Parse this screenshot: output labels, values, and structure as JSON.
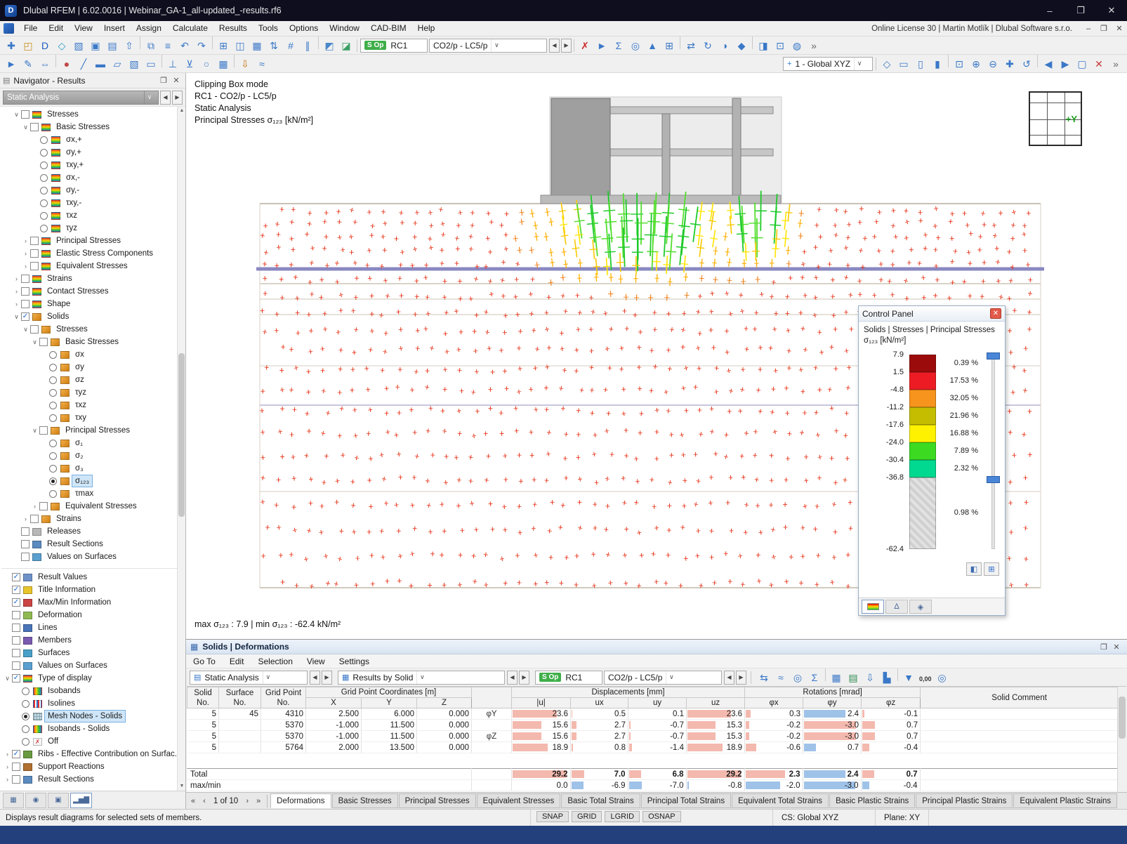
{
  "colors": {
    "bar_pink": "#f4b9ae",
    "bar_blue": "#9fc2e8",
    "accent_green": "#3fae49"
  },
  "title_bar": {
    "title": "Dlubal RFEM | 6.02.0016 | Webinar_GA-1_all-updated_-results.rf6",
    "minimize": "–",
    "maximize": "❐",
    "close": "✕"
  },
  "menu_bar": {
    "items": [
      "File",
      "Edit",
      "View",
      "Insert",
      "Assign",
      "Calculate",
      "Results",
      "Tools",
      "Options",
      "Window",
      "CAD-BIM",
      "Help"
    ],
    "license_text": "Online License 30 | Martin Motlík | Dlubal Software s.r.o."
  },
  "toolbars": {
    "sop_label": "S Op",
    "result_class_combo": "RC1",
    "load_case_combo": "CO2/p - LC5/p",
    "axis_system_combo": "1 - Global XYZ",
    "row1_left": [
      {
        "n": "new-model-icon",
        "g": "✚",
        "c": "#3a78c8"
      },
      {
        "n": "open-model-icon",
        "g": "◰",
        "c": "#c8901c"
      },
      {
        "n": "dlubal-hub-icon",
        "g": "D",
        "c": "#1d5bbf"
      },
      {
        "n": "bim-link-icon",
        "g": "◇",
        "c": "#2a9ac8"
      },
      {
        "n": "paste-icon",
        "g": "▧",
        "c": "#3a78c8"
      },
      {
        "n": "save-icon",
        "g": "▣",
        "c": "#3a78c8"
      },
      {
        "n": "print-icon",
        "g": "▤",
        "c": "#3a78c8"
      },
      {
        "n": "export-icon",
        "g": "⇧",
        "c": "#3a78c8"
      },
      {
        "sep": true
      },
      {
        "n": "copy-icon",
        "g": "⧉",
        "c": "#3a78c8"
      },
      {
        "n": "printout-report-icon",
        "g": "≡",
        "c": "#3a78c8"
      },
      {
        "n": "undo-icon",
        "g": "↶",
        "c": "#3a78c8"
      },
      {
        "n": "redo-icon",
        "g": "↷",
        "c": "#3a78c8"
      },
      {
        "sep": true
      },
      {
        "n": "data-table-icon",
        "g": "⊞",
        "c": "#3a78c8"
      },
      {
        "n": "split-view-icon",
        "g": "◫",
        "c": "#3a78c8"
      },
      {
        "n": "results-table-icon",
        "g": "▦",
        "c": "#3a78c8"
      },
      {
        "n": "renumber-icon",
        "g": "⇅",
        "c": "#3a78c8"
      },
      {
        "n": "grid-snap-icon",
        "g": "#",
        "c": "#3a78c8"
      },
      {
        "n": "guidelines-icon",
        "g": "∥",
        "c": "#3a78c8"
      },
      {
        "sep": true
      },
      {
        "n": "surface-results-icon",
        "g": "◩",
        "c": "#4a88c8"
      },
      {
        "n": "solid-results-icon",
        "g": "◪",
        "c": "#3aa064"
      }
    ],
    "row1_right": [
      {
        "n": "stop-calculation-icon",
        "g": "✗",
        "c": "#cc2a2a"
      },
      {
        "n": "selection-pointer-icon",
        "g": "►",
        "c": "#3a78c8"
      },
      {
        "n": "result-values-icon",
        "g": "Σ",
        "c": "#3a78c8"
      },
      {
        "n": "find-value-icon",
        "g": "◎",
        "c": "#3a78c8"
      },
      {
        "n": "extreme-values-icon",
        "g": "▲",
        "c": "#3a78c8"
      },
      {
        "n": "add-table-icon",
        "g": "⊞",
        "c": "#3a78c8"
      },
      {
        "sep": true
      },
      {
        "n": "move-entities-icon",
        "g": "⇄",
        "c": "#3a78c8"
      },
      {
        "n": "rotate-entities-icon",
        "g": "↻",
        "c": "#3a78c8"
      },
      {
        "n": "mirror-entities-icon",
        "g": "◑",
        "c": "#3a78c8"
      },
      {
        "n": "scale-entities-icon",
        "g": "◆",
        "c": "#3a78c8"
      },
      {
        "sep": true
      },
      {
        "n": "display-settings-icon",
        "g": "◨",
        "c": "#3a78c8"
      },
      {
        "n": "clipping-box-icon",
        "g": "⊡",
        "c": "#3a78c8"
      },
      {
        "n": "render-mode-icon",
        "g": "◍",
        "c": "#3a78c8"
      },
      {
        "n": "more-commands-icon",
        "g": "»",
        "c": "#666666"
      }
    ],
    "row2_left": [
      {
        "n": "select-mode-icon",
        "g": "►",
        "c": "#3a78c8"
      },
      {
        "n": "edit-mode-icon",
        "g": "✎",
        "c": "#3a78c8"
      },
      {
        "n": "dimensions-icon",
        "g": "⇔",
        "c": "#3a78c8"
      },
      {
        "sep": true
      },
      {
        "n": "node-tool-icon",
        "g": "●",
        "c": "#c04848"
      },
      {
        "n": "line-tool-icon",
        "g": "╱",
        "c": "#3a78c8"
      },
      {
        "n": "member-tool-icon",
        "g": "▬",
        "c": "#3a78c8"
      },
      {
        "n": "surface-tool-icon",
        "g": "▱",
        "c": "#3a78c8"
      },
      {
        "n": "solid-tool-icon",
        "g": "▧",
        "c": "#3a78c8"
      },
      {
        "n": "opening-tool-icon",
        "g": "▭",
        "c": "#3a78c8"
      },
      {
        "sep": true
      },
      {
        "n": "nodal-support-icon",
        "g": "⊥",
        "c": "#3a78c8"
      },
      {
        "n": "line-support-icon",
        "g": "⊻",
        "c": "#3a78c8"
      },
      {
        "n": "member-hinge-icon",
        "g": "○",
        "c": "#3a78c8"
      },
      {
        "n": "mesh-refinement-icon",
        "g": "▦",
        "c": "#3a78c8"
      },
      {
        "sep": true
      },
      {
        "n": "load-tool-icon",
        "g": "⇩",
        "c": "#c87818"
      },
      {
        "n": "imperfection-icon",
        "g": "≈",
        "c": "#3a78c8"
      }
    ],
    "row2_right": [
      {
        "n": "isometric-view-icon",
        "g": "◇",
        "c": "#3a78c8"
      },
      {
        "n": "view-xy-icon",
        "g": "▭",
        "c": "#3a78c8"
      },
      {
        "n": "view-xz-icon",
        "g": "▯",
        "c": "#3a78c8"
      },
      {
        "n": "view-yz-icon",
        "g": "▮",
        "c": "#3a78c8"
      },
      {
        "sep": true
      },
      {
        "n": "zoom-window-icon",
        "g": "⊡",
        "c": "#3a78c8"
      },
      {
        "n": "zoom-in-icon",
        "g": "⊕",
        "c": "#3a78c8"
      },
      {
        "n": "zoom-out-icon",
        "g": "⊖",
        "c": "#3a78c8"
      },
      {
        "n": "pan-view-icon",
        "g": "✚",
        "c": "#3a78c8"
      },
      {
        "n": "rotate-view-icon",
        "g": "↺",
        "c": "#3a78c8"
      },
      {
        "sep": true
      },
      {
        "n": "previous-view-icon",
        "g": "◀",
        "c": "#3a78c8"
      },
      {
        "n": "next-view-icon",
        "g": "▶",
        "c": "#3a78c8"
      },
      {
        "n": "full-view-icon",
        "g": "▢",
        "c": "#3a78c8"
      },
      {
        "n": "cancel-view-icon",
        "g": "✕",
        "c": "#c83a3a"
      },
      {
        "n": "more-views-icon",
        "g": "»",
        "c": "#666666"
      }
    ]
  },
  "navigator": {
    "title": "Navigator - Results",
    "analysis_combo": "Static Analysis",
    "tree": [
      {
        "i": 1,
        "e": "o",
        "k": "c0",
        "ic": "res",
        "l": "Stresses"
      },
      {
        "i": 2,
        "e": "o",
        "k": "c0",
        "ic": "res",
        "l": "Basic Stresses"
      },
      {
        "i": 3,
        "k": "r0",
        "ic": "res",
        "l": "σx,+"
      },
      {
        "i": 3,
        "k": "r0",
        "ic": "res",
        "l": "σy,+"
      },
      {
        "i": 3,
        "k": "r0",
        "ic": "res",
        "l": "τxy,+"
      },
      {
        "i": 3,
        "k": "r0",
        "ic": "res",
        "l": "σx,-"
      },
      {
        "i": 3,
        "k": "r0",
        "ic": "res",
        "l": "σy,-"
      },
      {
        "i": 3,
        "k": "r0",
        "ic": "res",
        "l": "τxy,-"
      },
      {
        "i": 3,
        "k": "r0",
        "ic": "res",
        "l": "τxz"
      },
      {
        "i": 3,
        "k": "r0",
        "ic": "res",
        "l": "τyz"
      },
      {
        "i": 2,
        "e": "c",
        "k": "c0",
        "ic": "res",
        "l": "Principal Stresses"
      },
      {
        "i": 2,
        "e": "c",
        "k": "c0",
        "ic": "res",
        "l": "Elastic Stress Components"
      },
      {
        "i": 2,
        "e": "c",
        "k": "c0",
        "ic": "res",
        "l": "Equivalent Stresses"
      },
      {
        "i": 1,
        "e": "c",
        "k": "c0",
        "ic": "res",
        "l": "Strains"
      },
      {
        "i": 1,
        "e": "c",
        "k": "c0",
        "ic": "res",
        "l": "Contact Stresses"
      },
      {
        "i": 1,
        "e": "c",
        "k": "c0",
        "ic": "res",
        "l": "Shape"
      },
      {
        "i": 1,
        "e": "o",
        "k": "c1",
        "ic": "sol",
        "l": "Solids"
      },
      {
        "i": 2,
        "e": "o",
        "k": "c0",
        "ic": "sol",
        "l": "Stresses"
      },
      {
        "i": 3,
        "e": "o",
        "k": "c0",
        "ic": "sol",
        "l": "Basic Stresses"
      },
      {
        "i": 4,
        "k": "r0",
        "ic": "sol",
        "l": "σx"
      },
      {
        "i": 4,
        "k": "r0",
        "ic": "sol",
        "l": "σy"
      },
      {
        "i": 4,
        "k": "r0",
        "ic": "sol",
        "l": "σz"
      },
      {
        "i": 4,
        "k": "r0",
        "ic": "sol",
        "l": "τyz"
      },
      {
        "i": 4,
        "k": "r0",
        "ic": "sol",
        "l": "τxz"
      },
      {
        "i": 4,
        "k": "r0",
        "ic": "sol",
        "l": "τxy"
      },
      {
        "i": 3,
        "e": "o",
        "k": "c0",
        "ic": "sol",
        "l": "Principal Stresses"
      },
      {
        "i": 4,
        "k": "r0",
        "ic": "sol",
        "l": "σ₁"
      },
      {
        "i": 4,
        "k": "r0",
        "ic": "sol",
        "l": "σ₂"
      },
      {
        "i": 4,
        "k": "r0",
        "ic": "sol",
        "l": "σ₃"
      },
      {
        "i": 4,
        "k": "r1",
        "ic": "sol",
        "l": "σ₁₂₃",
        "sel": true
      },
      {
        "i": 4,
        "k": "r0",
        "ic": "sol",
        "l": "τmax"
      },
      {
        "i": 3,
        "e": "c",
        "k": "c0",
        "ic": "sol",
        "l": "Equivalent Stresses"
      },
      {
        "i": 2,
        "e": "c",
        "k": "c0",
        "ic": "sol",
        "l": "Strains"
      },
      {
        "i": 1,
        "k": "c0",
        "ic": "rel",
        "l": "Releases"
      },
      {
        "i": 1,
        "k": "c0",
        "ic": "sec",
        "l": "Result Sections"
      },
      {
        "i": 1,
        "k": "c0",
        "ic": "val",
        "l": "Values on Surfaces"
      },
      {
        "sep": true
      },
      {
        "i": 0,
        "k": "c1",
        "ic": "xyz",
        "l": "Result Values"
      },
      {
        "i": 0,
        "k": "c1",
        "ic": "info",
        "l": "Title Information"
      },
      {
        "i": 0,
        "k": "c1",
        "ic": "mm",
        "l": "Max/Min Information"
      },
      {
        "i": 0,
        "k": "c0",
        "ic": "def",
        "l": "Deformation"
      },
      {
        "i": 0,
        "k": "c0",
        "ic": "lin",
        "l": "Lines"
      },
      {
        "i": 0,
        "k": "c0",
        "ic": "mem",
        "l": "Members"
      },
      {
        "i": 0,
        "k": "c0",
        "ic": "sur",
        "l": "Surfaces"
      },
      {
        "i": 0,
        "k": "c0",
        "ic": "val",
        "l": "Values on Surfaces"
      },
      {
        "i": 0,
        "e": "o",
        "k": "c1",
        "ic": "disp",
        "l": "Type of display"
      },
      {
        "i": 1,
        "k": "r0",
        "ic": "iso",
        "l": "Isobands"
      },
      {
        "i": 1,
        "k": "r0",
        "ic": "isoline",
        "l": "Isolines"
      },
      {
        "i": 1,
        "k": "r1",
        "ic": "mesh",
        "l": "Mesh Nodes - Solids",
        "sel": true
      },
      {
        "i": 1,
        "k": "r0",
        "ic": "iso",
        "l": "Isobands - Solids"
      },
      {
        "i": 1,
        "k": "r0",
        "ic": "off",
        "l": "Off"
      },
      {
        "i": 0,
        "e": "c",
        "k": "c1",
        "ic": "rib",
        "l": "Ribs - Effective Contribution on Surfac..."
      },
      {
        "i": 0,
        "e": "c",
        "k": "c0",
        "ic": "sup",
        "l": "Support Reactions"
      },
      {
        "i": 0,
        "e": "c",
        "k": "c0",
        "ic": "sec",
        "l": "Result Sections"
      }
    ],
    "bottom_tabs": [
      {
        "n": "nav-tab-data",
        "g": "▦"
      },
      {
        "n": "nav-tab-display",
        "g": "◉"
      },
      {
        "n": "nav-tab-views",
        "g": "▣"
      },
      {
        "n": "nav-tab-results",
        "g": "▂▅▇",
        "on": true
      }
    ]
  },
  "viewport": {
    "info_lines": [
      "Clipping Box mode",
      "RC1 - CO2/p - LC5/p",
      "Static Analysis",
      "Principal Stresses σ₁₂₃ [kN/m²]"
    ],
    "maxmin_line": "max σ₁₂₃ : 7.9 | min σ₁₂₃ : -62.4 kN/m²",
    "axis_widget_label": "+Y"
  },
  "control_panel": {
    "title": "Control Panel",
    "subtitle_line1": "Solids | Stresses | Principal Stresses",
    "subtitle_line2": "σ₁₂₃ [kN/m²]",
    "boundary_values": [
      "7.9",
      "1.5",
      "-4.8",
      "-11.2",
      "-17.6",
      "-24.0",
      "-30.4",
      "-36.8",
      "-62.4"
    ],
    "bands": [
      {
        "color": "#9c0b0b",
        "pct": "0.39 %"
      },
      {
        "color": "#ed1c24",
        "pct": "17.53 %"
      },
      {
        "color": "#f7941d",
        "pct": "32.05 %"
      },
      {
        "color": "#c4bd00",
        "pct": "21.96 %"
      },
      {
        "color": "#fff200",
        "pct": "16.88 %"
      },
      {
        "color": "#3cdb22",
        "pct": "7.89 %"
      },
      {
        "color": "#00d98f",
        "pct": "2.32 %"
      },
      {
        "color": "hatch",
        "pct": "0.98 %",
        "tall": true
      }
    ]
  },
  "results_panel": {
    "title": "Solids | Deformations",
    "menu_items": [
      "Go To",
      "Edit",
      "Selection",
      "View",
      "Settings"
    ],
    "analysis_combo": "Static Analysis",
    "results_by_combo": "Results by Solid",
    "sop_label": "S Op",
    "result_class_combo": "RC1",
    "load_case_combo": "CO2/p - LC5/p",
    "icons": [
      {
        "n": "jump-to-model-icon",
        "g": "⇆",
        "c": "#3a78c8"
      },
      {
        "n": "result-diagrams-icon",
        "g": "≈",
        "c": "#3a78c8"
      },
      {
        "n": "find-in-table-icon",
        "g": "◎",
        "c": "#3a78c8"
      },
      {
        "n": "sum-values-icon",
        "g": "Σ",
        "c": "#3a78c8"
      },
      {
        "sep": true
      },
      {
        "n": "table-settings-icon",
        "g": "▦",
        "c": "#3a78c8"
      },
      {
        "n": "excel-export-icon",
        "g": "▤",
        "c": "#2a8a4a"
      },
      {
        "n": "print-table-icon",
        "g": "⇩",
        "c": "#3a78c8"
      },
      {
        "n": "chart-view-icon",
        "g": "▙",
        "c": "#3a78c8"
      },
      {
        "sep": true
      },
      {
        "n": "filter-rows-icon",
        "g": "▼",
        "c": "#3a78c8"
      },
      {
        "n": "decimal-places-icon",
        "g": "0,00",
        "c": "#333333",
        "t": true
      },
      {
        "n": "search-table-icon",
        "g": "◎",
        "c": "#3a78c8"
      }
    ],
    "table": {
      "group_headers": {
        "coords": "Grid Point Coordinates [m]",
        "disp": "Displacements [mm]",
        "rot": "Rotations [mrad]"
      },
      "col_headers": {
        "solid": "Solid No.",
        "surface": "Surface No.",
        "grid": "Grid Point No.",
        "x": "X",
        "y": "Y",
        "z": "Z",
        "u": "|u|",
        "ux": "ux",
        "uy": "uy",
        "uz": "uz",
        "phix": "φx",
        "phiy": "φy",
        "phiz": "φz",
        "comment": "Solid Comment"
      },
      "rows": [
        {
          "solid": "5",
          "surface": "45",
          "grid": "4310",
          "x": "2.500",
          "y": "6.000",
          "z": "0.000",
          "lab": "φY",
          "u": 23.6,
          "ux": 0.5,
          "uy": 0.1,
          "uz": 23.6,
          "phix": 0.3,
          "phiy": 2.4,
          "phiz": -0.1
        },
        {
          "solid": "5",
          "surface": "",
          "grid": "5370",
          "x": "-1.000",
          "y": "11.500",
          "z": "0.000",
          "lab": "",
          "u": 15.6,
          "ux": 2.7,
          "uy": -0.7,
          "uz": 15.3,
          "phix": -0.2,
          "phiy": -3.0,
          "phiz": 0.7
        },
        {
          "solid": "5",
          "surface": "",
          "grid": "5370",
          "x": "-1.000",
          "y": "11.500",
          "z": "0.000",
          "lab": "φZ",
          "u": 15.6,
          "ux": 2.7,
          "uy": -0.7,
          "uz": 15.3,
          "phix": -0.2,
          "phiy": -3.0,
          "phiz": 0.7
        },
        {
          "solid": "5",
          "surface": "",
          "grid": "5764",
          "x": "2.000",
          "y": "13.500",
          "z": "0.000",
          "lab": "",
          "u": 18.9,
          "ux": 0.8,
          "uy": -1.4,
          "uz": 18.9,
          "phix": -0.6,
          "phiy": 0.7,
          "phiz": -0.4
        }
      ],
      "total_label": "Total",
      "total": {
        "u": 29.2,
        "ux": 7.0,
        "uy": 6.8,
        "uz": 29.2,
        "phix": 2.3,
        "phiy": 2.4,
        "phiz": 0.7
      },
      "maxmin_label": "max/min",
      "maxmin": {
        "u": 0.0,
        "ux": -6.9,
        "uy": -7.0,
        "uz": -0.8,
        "phix": -2.0,
        "phiy": -3.0,
        "phiz": -0.4
      }
    },
    "pagination": "1 of 10",
    "tabs": [
      "Deformations",
      "Basic Stresses",
      "Principal Stresses",
      "Equivalent Stresses",
      "Basic Total Strains",
      "Principal Total Strains",
      "Equivalent Total Strains",
      "Basic Plastic Strains",
      "Principal Plastic Strains",
      "Equivalent Plastic Strains"
    ],
    "active_tab": "Deformations"
  },
  "status_bar": {
    "message": "Displays result diagrams for selected sets of members.",
    "toggles": [
      "SNAP",
      "GRID",
      "LGRID",
      "OSNAP"
    ],
    "cs": "CS: Global XYZ",
    "plane": "Plane: XY"
  }
}
